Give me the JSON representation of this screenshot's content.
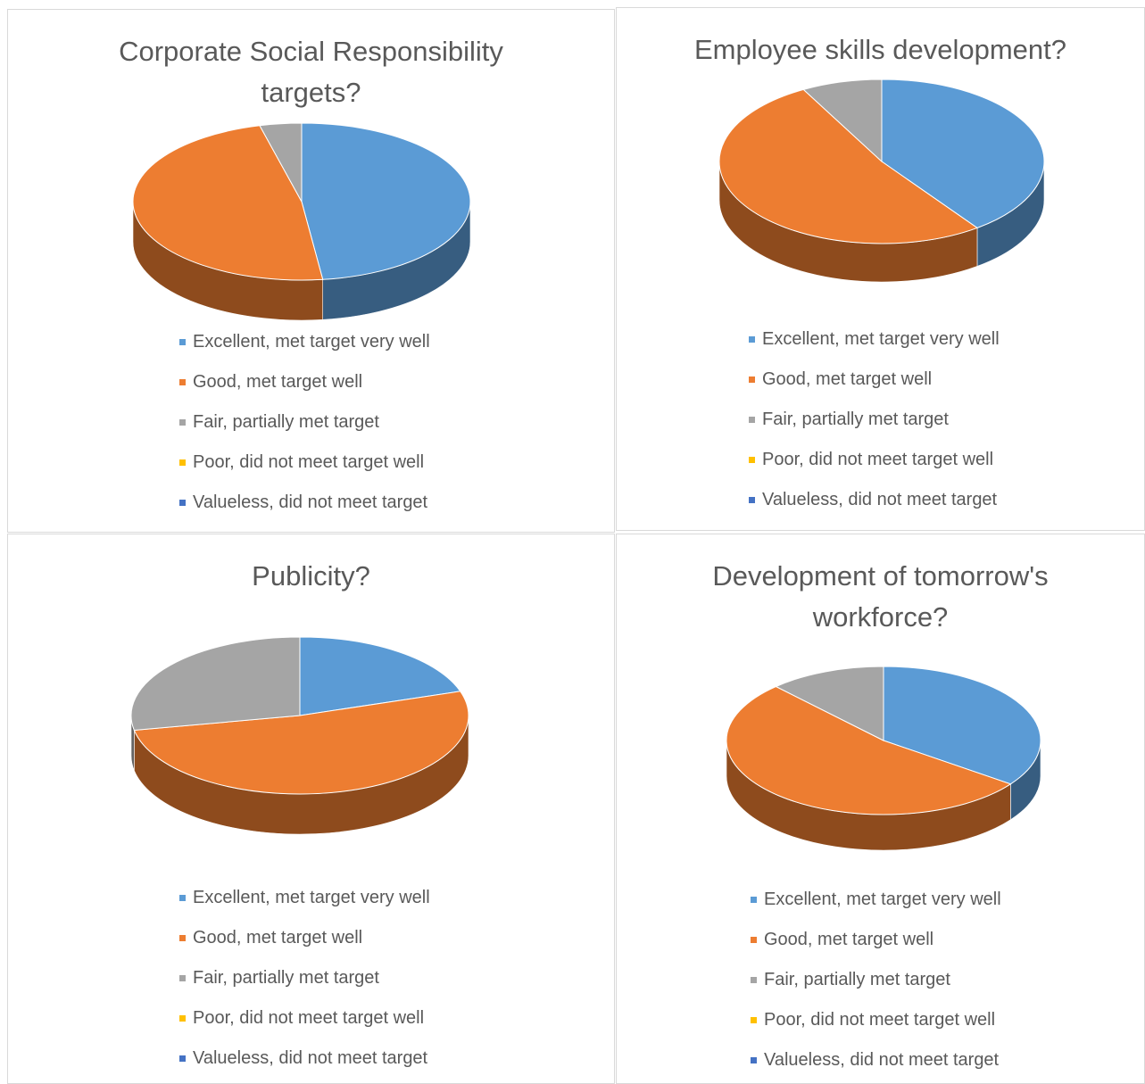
{
  "chart_data": [
    {
      "type": "pie",
      "title": "Corporate Social Responsibility targets?",
      "categories": [
        "Excellent, met target very well",
        "Good, met target well",
        "Fair, partially met target",
        "Poor, did not meet target well",
        "Valueless, did not meet target"
      ],
      "values": [
        48,
        48,
        4,
        0,
        0
      ],
      "colors": [
        "#5b9bd5",
        "#ed7d31",
        "#a5a5a5",
        "#ffc000",
        "#4472c4"
      ]
    },
    {
      "type": "pie",
      "title": "Employee skills development?",
      "categories": [
        "Excellent, met target very well",
        "Good, met target well",
        "Fair, partially met target",
        "Poor, did not meet target well",
        "Valueless, did not meet target"
      ],
      "values": [
        40,
        52,
        8,
        0,
        0
      ],
      "colors": [
        "#5b9bd5",
        "#ed7d31",
        "#a5a5a5",
        "#ffc000",
        "#4472c4"
      ]
    },
    {
      "type": "pie",
      "title": "Publicity?",
      "categories": [
        "Excellent, met target very well",
        "Good, met target well",
        "Fair, partially met target",
        "Poor, did not meet target well",
        "Valueless, did not meet target"
      ],
      "values": [
        20,
        52,
        28,
        0,
        0
      ],
      "colors": [
        "#5b9bd5",
        "#ed7d31",
        "#a5a5a5",
        "#ffc000",
        "#4472c4"
      ]
    },
    {
      "type": "pie",
      "title": "Development of tomorrow's workforce?",
      "categories": [
        "Excellent, met target very well",
        "Good, met target well",
        "Fair, partially met target",
        "Poor, did not meet target well",
        "Valueless, did not meet target"
      ],
      "values": [
        35,
        53,
        12,
        0,
        0
      ],
      "colors": [
        "#5b9bd5",
        "#ed7d31",
        "#a5a5a5",
        "#ffc000",
        "#4472c4"
      ]
    }
  ]
}
